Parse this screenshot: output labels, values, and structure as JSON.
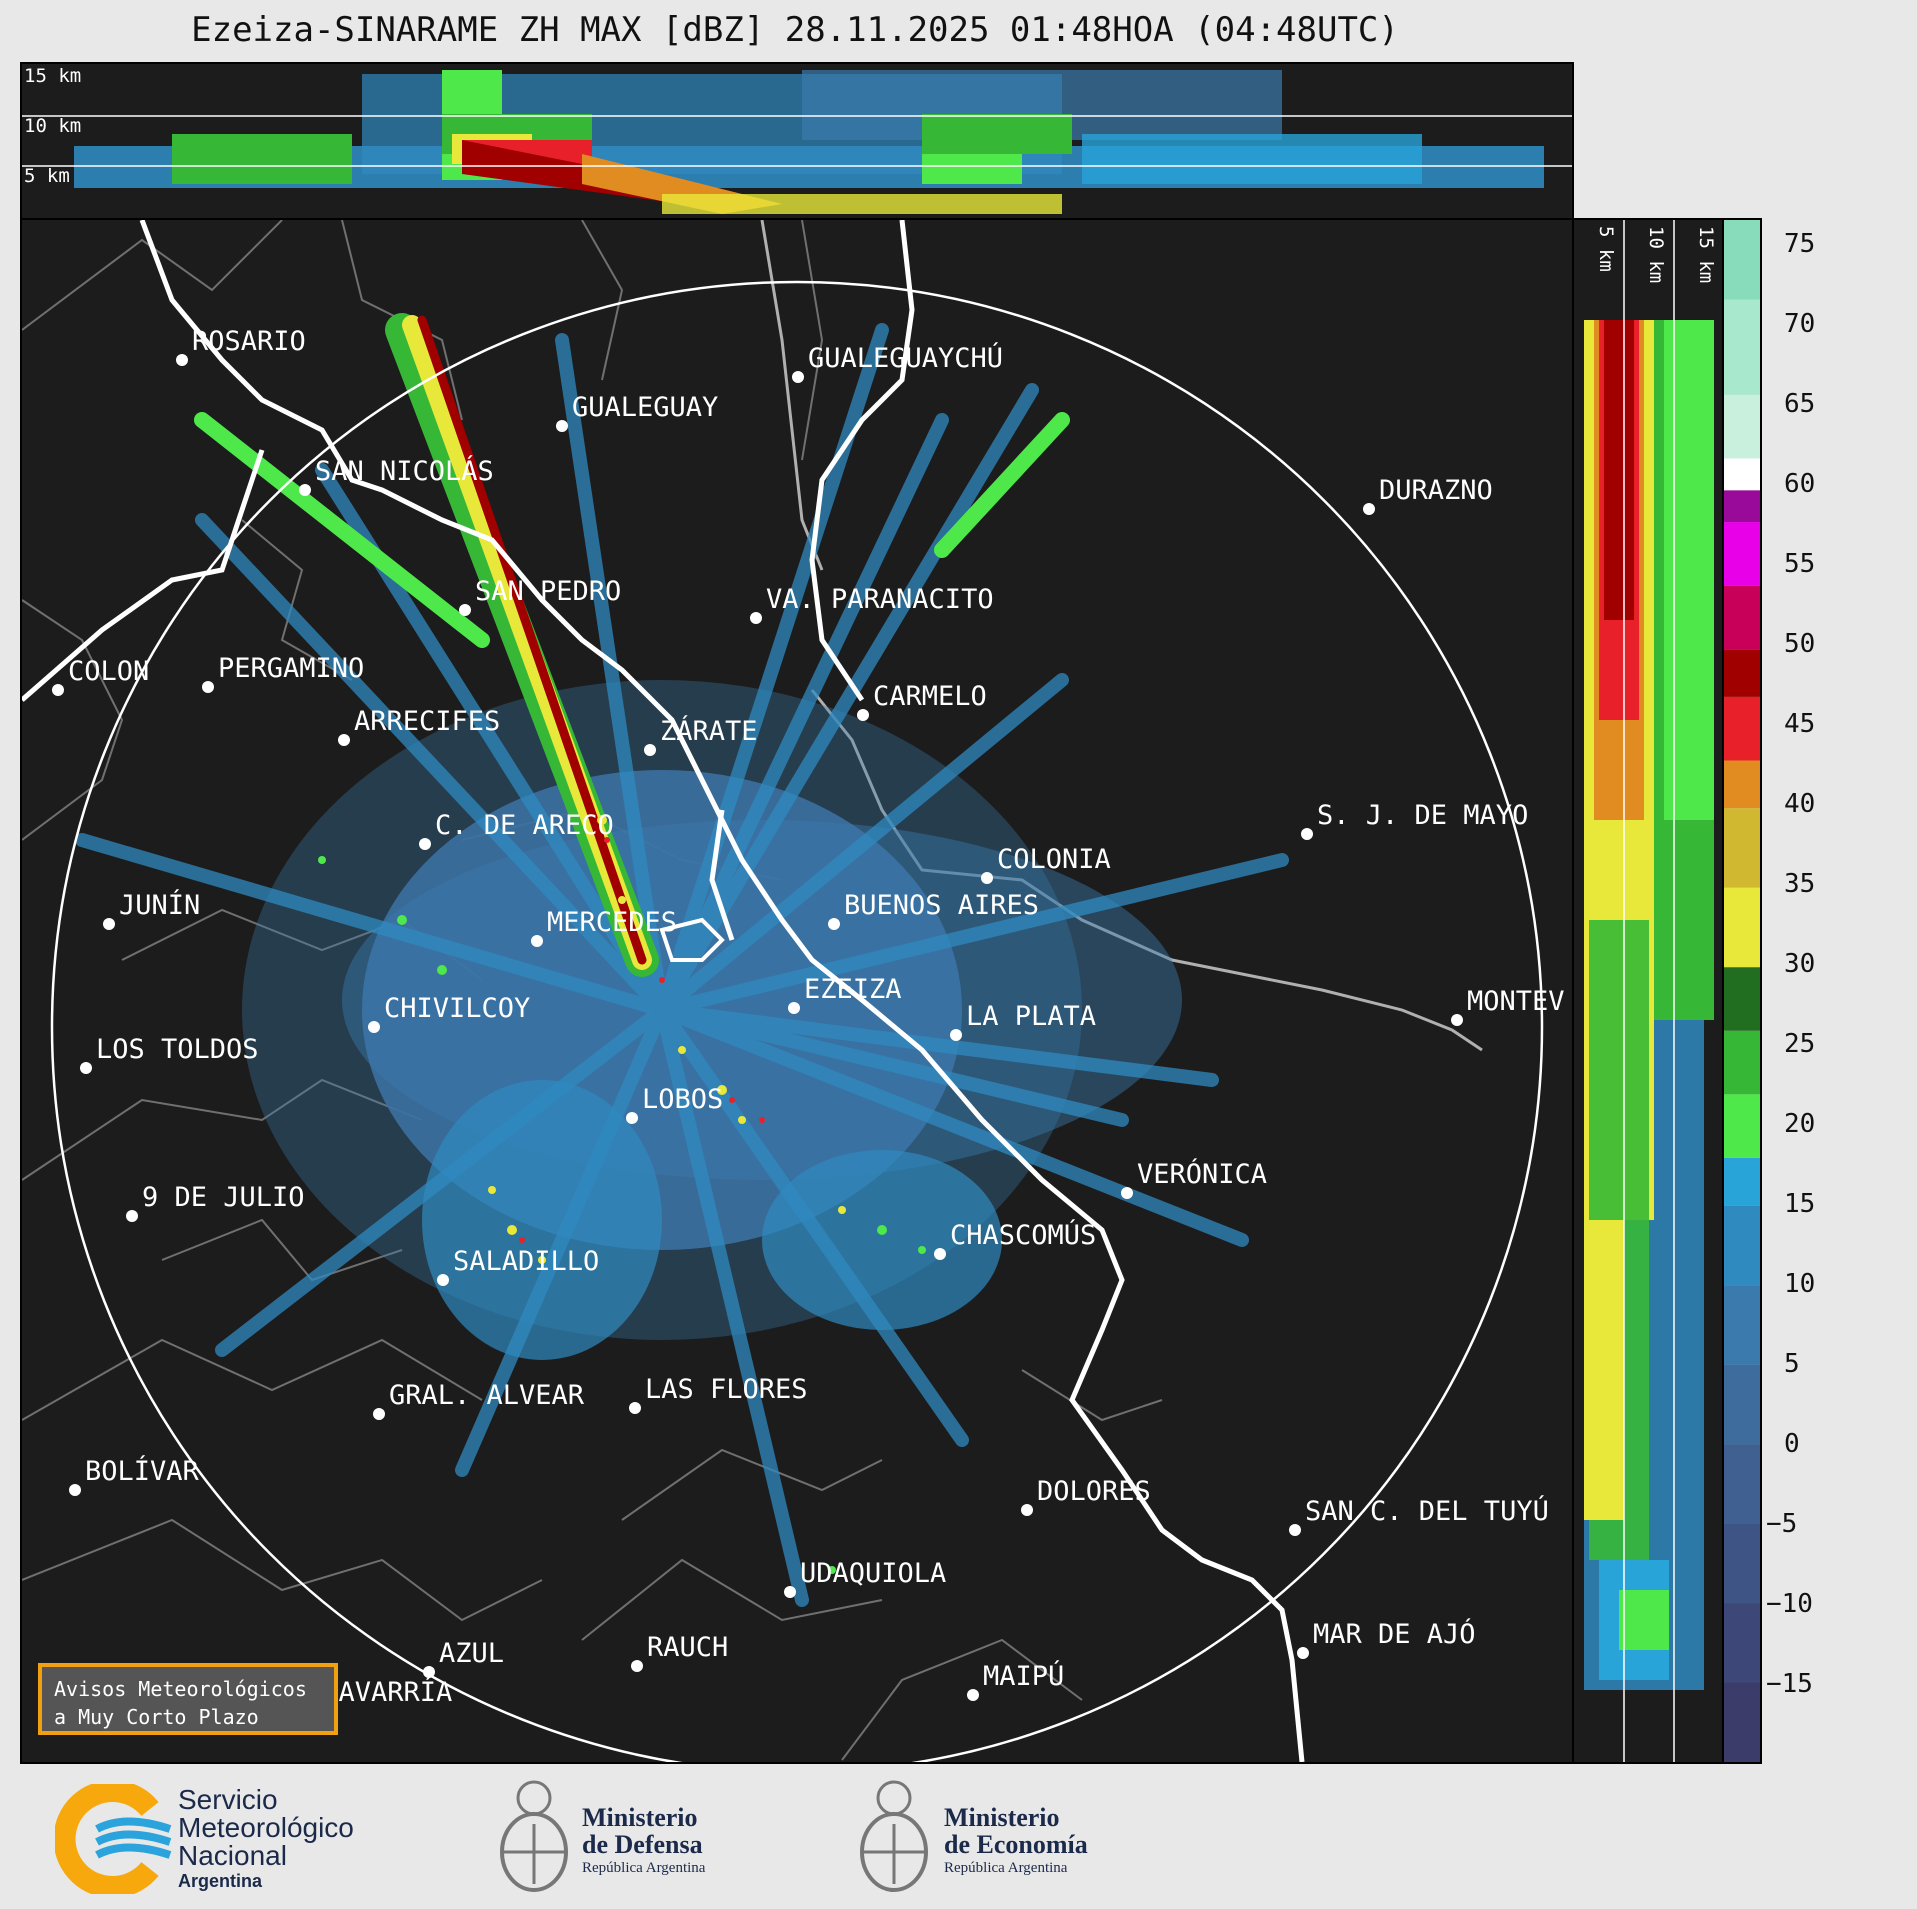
{
  "title": "Ezeiza-SINARAME ZH MAX [dBZ] 28.11.2025 01:48HOA (04:48UTC)",
  "top_panel": {
    "height_labels": [
      "15 km",
      "10 km",
      "5 km"
    ]
  },
  "right_panel": {
    "height_labels": [
      "5 km",
      "10 km",
      "15 km"
    ]
  },
  "colorbar": {
    "ticks": [
      "75",
      "70",
      "65",
      "60",
      "55",
      "50",
      "45",
      "40",
      "35",
      "30",
      "25",
      "20",
      "15",
      "10",
      "5",
      "0",
      "−5",
      "−10",
      "−15"
    ],
    "range": [
      -20,
      77
    ],
    "stops": [
      {
        "from": -20,
        "to": -15,
        "color": "#3b3c6a"
      },
      {
        "from": -15,
        "to": -10,
        "color": "#3d4878"
      },
      {
        "from": -10,
        "to": -5,
        "color": "#3e5484"
      },
      {
        "from": -5,
        "to": 0,
        "color": "#3f6090"
      },
      {
        "from": 0,
        "to": 5,
        "color": "#3e6c9c"
      },
      {
        "from": 5,
        "to": 10,
        "color": "#3a7aac"
      },
      {
        "from": 10,
        "to": 15,
        "color": "#2f8ac0"
      },
      {
        "from": 15,
        "to": 18,
        "color": "#28a4d8"
      },
      {
        "from": 18,
        "to": 22,
        "color": "#4ee84a"
      },
      {
        "from": 22,
        "to": 26,
        "color": "#36b836"
      },
      {
        "from": 26,
        "to": 30,
        "color": "#216e21"
      },
      {
        "from": 30,
        "to": 35,
        "color": "#e8e83a"
      },
      {
        "from": 35,
        "to": 40,
        "color": "#d0b830"
      },
      {
        "from": 40,
        "to": 43,
        "color": "#e08c20"
      },
      {
        "from": 43,
        "to": 47,
        "color": "#e8202a"
      },
      {
        "from": 47,
        "to": 50,
        "color": "#a00000"
      },
      {
        "from": 50,
        "to": 54,
        "color": "#c8005a"
      },
      {
        "from": 54,
        "to": 58,
        "color": "#e800e8"
      },
      {
        "from": 58,
        "to": 60,
        "color": "#9a0a9a"
      },
      {
        "from": 60,
        "to": 62,
        "color": "#ffffff"
      },
      {
        "from": 62,
        "to": 66,
        "color": "#c8f0dc"
      },
      {
        "from": 66,
        "to": 72,
        "color": "#a8e8cc"
      },
      {
        "from": 72,
        "to": 77,
        "color": "#88dcbc"
      }
    ]
  },
  "cities": [
    "ROSARIO",
    "GUALEGUAYCHÚ",
    "GUALEGUAY",
    "SAN NICOLÁS",
    "DURAZNO",
    "SAN PEDRO",
    "VA. PARANACITO",
    "COLON",
    "PERGAMINO",
    "CARMELO",
    "ARRECIFES",
    "ZÁRATE",
    "S. J. DE MAYO",
    "C. DE ARECO",
    "COLONIA",
    "BUENOS AIRES",
    "JUNÍN",
    "MERCEDES",
    "MONTEV",
    "EZEIZA",
    "CHIVILCOY",
    "LA PLATA",
    "LOS TOLDOS",
    "LOBOS",
    "VERÓNICA",
    "9 DE JULIO",
    "CHASCOMÚS",
    "SALADILLO",
    "GRAL. ALVEAR",
    "LAS FLORES",
    "BOLÍVAR",
    "DOLORES",
    "SAN C. DEL TUYÚ",
    "UDAQUIOLA",
    "MAR DE AJÓ",
    "AZUL",
    "RAUCH",
    "OLAVARRÍA",
    "MAIPÚ"
  ],
  "warning_box": {
    "line1": "Avisos Meteorológicos",
    "line2": "a Muy Corto Plazo"
  },
  "footer": {
    "smn": {
      "line1": "Servicio",
      "line2": "Meteorológico",
      "line3": "Nacional",
      "line4": "Argentina"
    },
    "defensa": {
      "line1": "Ministerio",
      "line2": "de Defensa",
      "line3": "República Argentina"
    },
    "economia": {
      "line1": "Ministerio",
      "line2": "de Economía",
      "line3": "República Argentina"
    }
  }
}
